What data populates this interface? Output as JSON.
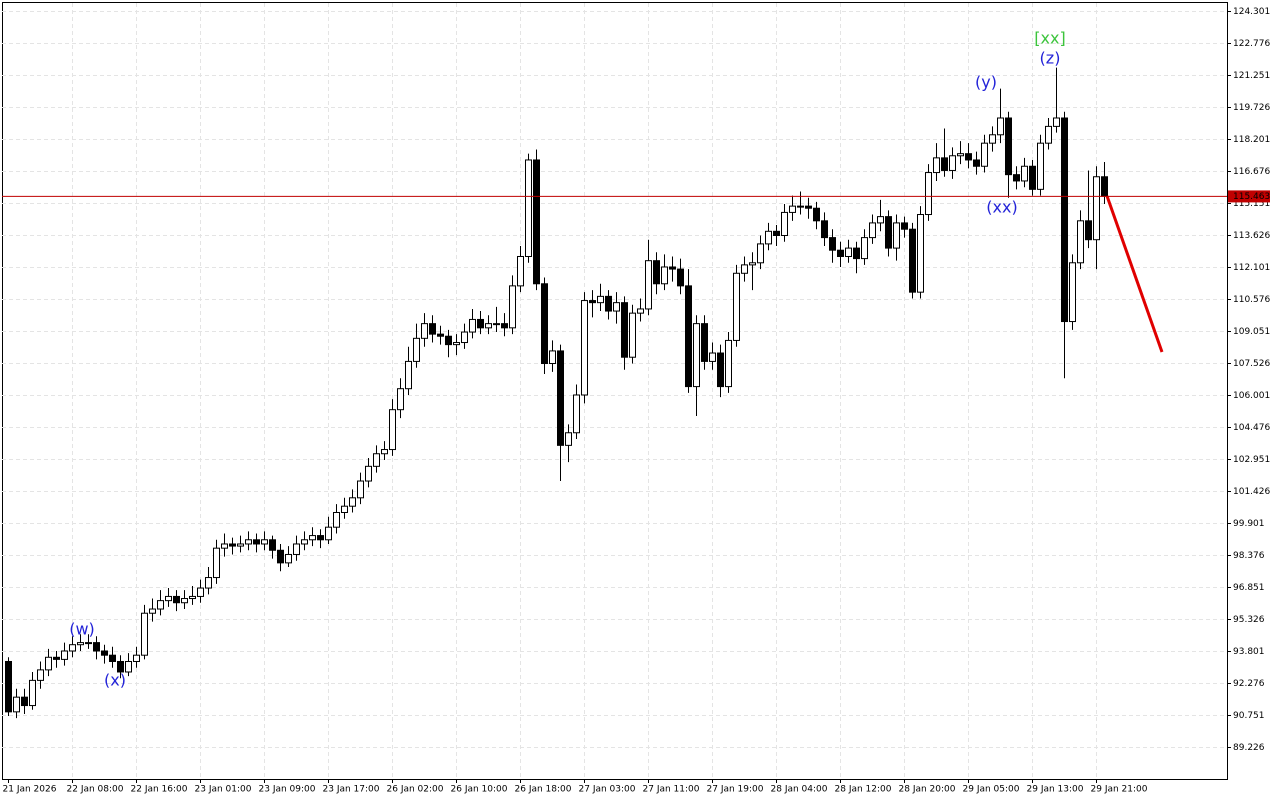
{
  "chart_data": {
    "type": "candlestick",
    "categories": [
      "21 Jan 2026",
      null,
      null,
      null,
      null,
      null,
      null,
      null,
      "22 Jan 08:00",
      null,
      null,
      null,
      null,
      null,
      null,
      null,
      "22 Jan 16:00",
      null,
      null,
      null,
      null,
      null,
      null,
      null,
      "23 Jan 01:00",
      null,
      null,
      null,
      null,
      null,
      null,
      null,
      "23 Jan 09:00",
      null,
      null,
      null,
      null,
      null,
      null,
      null,
      "23 Jan 17:00",
      null,
      null,
      null,
      null,
      null,
      null,
      null,
      "26 Jan 02:00",
      null,
      null,
      null,
      null,
      null,
      null,
      null,
      "26 Jan 10:00",
      null,
      null,
      null,
      null,
      null,
      null,
      null,
      "26 Jan 18:00",
      null,
      null,
      null,
      null,
      null,
      null,
      null,
      "27 Jan 03:00",
      null,
      null,
      null,
      null,
      null,
      null,
      null,
      "27 Jan 11:00",
      null,
      null,
      null,
      null,
      null,
      null,
      null,
      "27 Jan 19:00",
      null,
      null,
      null,
      null,
      null,
      null,
      null,
      "28 Jan 04:00",
      null,
      null,
      null,
      null,
      null,
      null,
      null,
      "28 Jan 12:00",
      null,
      null,
      null,
      null,
      null,
      null,
      null,
      "28 Jan 20:00",
      null,
      null,
      null,
      null,
      null,
      null,
      null,
      "29 Jan 05:00",
      null,
      null,
      null,
      null,
      null,
      null,
      null,
      "29 Jan 13:00",
      null,
      null,
      null,
      null,
      null,
      null,
      null,
      "29 Jan 21:00",
      null
    ],
    "open": [
      93.3,
      90.9,
      91.6,
      91.2,
      92.4,
      92.9,
      93.5,
      93.4,
      93.8,
      94.1,
      94.2,
      94.2,
      93.8,
      93.6,
      93.3,
      92.8,
      93.3,
      93.6,
      95.6,
      95.8,
      96.2,
      96.4,
      96.1,
      96.3,
      96.4,
      96.8,
      97.3,
      98.7,
      98.9,
      98.8,
      98.9,
      99.1,
      98.9,
      99.1,
      98.6,
      98.0,
      98.4,
      98.9,
      99.1,
      99.3,
      99.1,
      99.7,
      100.4,
      100.7,
      101.1,
      101.9,
      102.6,
      103.2,
      103.4,
      105.3,
      106.3,
      107.6,
      108.7,
      109.4,
      108.9,
      108.8,
      108.4,
      108.5,
      109.0,
      109.6,
      109.2,
      109.4,
      109.4,
      109.2,
      111.2,
      112.6,
      117.2,
      111.3,
      107.5,
      108.1,
      103.6,
      104.2,
      106.0,
      110.5,
      110.4,
      110.7,
      110.0,
      110.4,
      107.8,
      109.9,
      110.1,
      112.4,
      111.3,
      112.1,
      112.0,
      111.2,
      106.4,
      109.4,
      107.6,
      108.0,
      106.4,
      108.6,
      111.8,
      112.2,
      112.3,
      113.2,
      113.8,
      113.6,
      114.7,
      115.0,
      115.0,
      114.9,
      114.3,
      113.5,
      112.9,
      112.6,
      113.0,
      112.5,
      113.5,
      114.2,
      114.5,
      113.0,
      114.2,
      113.9,
      110.9,
      114.6,
      116.6,
      117.3,
      116.7,
      117.4,
      117.5,
      117.2,
      116.9,
      118.0,
      118.4,
      119.2,
      116.5,
      116.2,
      116.9,
      115.8,
      118.0,
      118.8,
      119.2,
      109.5,
      112.3,
      114.3,
      113.4,
      116.4
    ],
    "high": [
      93.5,
      92.0,
      92.0,
      92.8,
      93.3,
      93.9,
      93.8,
      94.2,
      94.5,
      94.6,
      94.6,
      94.5,
      94.1,
      94.0,
      93.6,
      93.7,
      94.0,
      96.0,
      96.3,
      96.7,
      96.8,
      96.7,
      96.7,
      96.9,
      97.2,
      97.8,
      99.1,
      99.4,
      99.2,
      99.3,
      99.5,
      99.4,
      99.5,
      99.3,
      98.9,
      98.8,
      99.3,
      99.5,
      99.7,
      99.6,
      100.2,
      100.8,
      101.1,
      101.5,
      102.3,
      103.0,
      103.6,
      103.8,
      105.8,
      106.8,
      108.3,
      109.4,
      109.9,
      109.8,
      109.3,
      109.1,
      108.9,
      109.4,
      110.1,
      110.0,
      109.8,
      110.2,
      109.9,
      111.7,
      113.1,
      117.5,
      117.7,
      111.6,
      108.6,
      108.4,
      104.6,
      106.5,
      110.9,
      111.0,
      111.3,
      111.0,
      110.9,
      110.7,
      110.3,
      110.6,
      113.4,
      112.8,
      112.7,
      112.6,
      112.5,
      112.0,
      109.8,
      109.8,
      108.5,
      108.4,
      109.0,
      112.2,
      112.6,
      112.8,
      113.6,
      114.2,
      114.1,
      115.1,
      115.5,
      115.7,
      115.4,
      115.2,
      114.7,
      113.9,
      113.3,
      113.4,
      113.3,
      113.9,
      114.6,
      115.3,
      114.8,
      114.6,
      114.5,
      114.2,
      115.0,
      117.0,
      118.0,
      118.7,
      117.8,
      118.1,
      118.0,
      117.6,
      118.4,
      118.8,
      120.6,
      119.5,
      116.9,
      117.3,
      117.2,
      118.4,
      119.2,
      121.6,
      119.5,
      112.7,
      114.8,
      116.7,
      116.9,
      117.1
    ],
    "low": [
      90.7,
      90.6,
      90.8,
      91.0,
      92.0,
      92.6,
      93.0,
      93.1,
      93.5,
      93.8,
      93.9,
      93.4,
      93.2,
      93.0,
      92.5,
      92.6,
      93.0,
      93.4,
      95.2,
      95.5,
      95.9,
      95.7,
      95.8,
      96.0,
      96.1,
      96.5,
      97.0,
      98.3,
      98.4,
      98.5,
      98.6,
      98.5,
      98.6,
      98.2,
      97.6,
      97.8,
      98.1,
      98.6,
      98.8,
      98.7,
      98.9,
      99.4,
      100.1,
      100.4,
      100.8,
      101.6,
      102.3,
      102.9,
      103.1,
      104.9,
      106.0,
      107.3,
      108.3,
      108.5,
      108.4,
      107.8,
      107.9,
      108.2,
      108.7,
      108.9,
      108.9,
      109.0,
      108.8,
      108.9,
      110.9,
      112.3,
      111.0,
      107.0,
      107.1,
      101.9,
      102.8,
      103.9,
      105.6,
      109.7,
      110.0,
      109.6,
      109.4,
      107.2,
      107.5,
      109.5,
      109.8,
      110.8,
      111.0,
      111.4,
      110.8,
      106.1,
      105.0,
      107.2,
      107.2,
      105.9,
      106.1,
      108.3,
      111.4,
      111.0,
      112.0,
      112.9,
      113.1,
      113.3,
      114.3,
      114.6,
      114.4,
      113.9,
      113.1,
      112.3,
      112.1,
      112.3,
      111.8,
      112.2,
      113.2,
      113.8,
      112.6,
      112.4,
      113.5,
      110.6,
      110.6,
      114.3,
      116.2,
      116.4,
      116.3,
      117.0,
      116.8,
      116.5,
      116.6,
      117.6,
      118.0,
      115.4,
      115.8,
      115.9,
      115.5,
      115.5,
      117.7,
      118.5,
      106.8,
      109.1,
      112.0,
      113.0,
      112.0,
      115.1
    ],
    "close": [
      90.9,
      91.6,
      91.2,
      92.4,
      92.9,
      93.5,
      93.4,
      93.8,
      94.1,
      94.2,
      94.2,
      93.8,
      93.6,
      93.3,
      92.8,
      93.3,
      93.6,
      95.6,
      95.8,
      96.2,
      96.4,
      96.1,
      96.3,
      96.4,
      96.8,
      97.3,
      98.7,
      98.9,
      98.8,
      98.9,
      99.1,
      98.9,
      99.1,
      98.6,
      98.0,
      98.4,
      98.9,
      99.1,
      99.3,
      99.1,
      99.7,
      100.4,
      100.7,
      101.1,
      101.9,
      102.6,
      103.2,
      103.4,
      105.3,
      106.3,
      107.6,
      108.7,
      109.4,
      108.9,
      108.8,
      108.4,
      108.5,
      109.0,
      109.6,
      109.2,
      109.4,
      109.4,
      109.2,
      111.2,
      112.6,
      117.2,
      111.3,
      107.5,
      108.1,
      103.6,
      104.2,
      106.0,
      110.5,
      110.4,
      110.7,
      110.0,
      110.4,
      107.8,
      109.9,
      110.1,
      112.4,
      111.3,
      112.1,
      112.0,
      111.2,
      106.4,
      109.4,
      107.6,
      108.0,
      106.4,
      108.6,
      111.8,
      112.2,
      112.3,
      113.2,
      113.8,
      113.6,
      114.7,
      115.0,
      115.0,
      114.9,
      114.3,
      113.5,
      112.9,
      112.6,
      113.0,
      112.5,
      113.5,
      114.2,
      114.5,
      113.0,
      114.2,
      113.9,
      110.9,
      114.6,
      116.6,
      117.3,
      116.7,
      117.4,
      117.5,
      117.2,
      116.9,
      118.0,
      118.4,
      119.2,
      116.5,
      116.2,
      116.9,
      115.8,
      118.0,
      118.8,
      119.2,
      109.5,
      112.3,
      114.3,
      113.4,
      116.4,
      115.463
    ],
    "bull_color": "#ffffff",
    "bear_color": "#000000",
    "ylim": [
      87.7,
      124.68
    ],
    "yticks": [
      124.301,
      122.776,
      121.251,
      119.726,
      118.201,
      116.676,
      115.151,
      113.626,
      112.101,
      110.576,
      109.051,
      107.526,
      106.001,
      104.476,
      102.951,
      101.426,
      99.901,
      98.376,
      96.851,
      95.326,
      93.801,
      92.276,
      90.751,
      89.226
    ],
    "grid": true,
    "current_price": 115.463,
    "current_price_color": "#c00000",
    "annotations": [
      {
        "text": "(w)",
        "color": "#2323d8"
      },
      {
        "text": "(x)",
        "color": "#2323d8"
      },
      {
        "text": "(y)",
        "color": "#2323d8"
      },
      {
        "text": "(xx)",
        "color": "#2323d8"
      },
      {
        "text": "(z)",
        "color": "#2323d8"
      },
      {
        "text": "[xx]",
        "color": "#3cc43c"
      }
    ]
  }
}
